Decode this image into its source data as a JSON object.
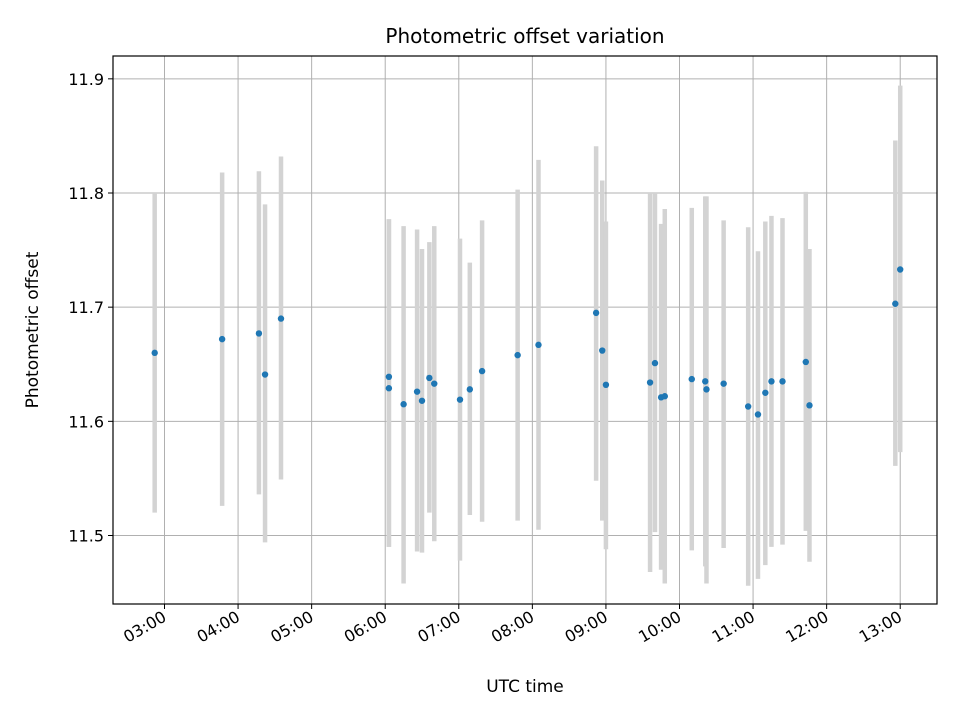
{
  "chart_data": {
    "type": "scatter",
    "title": "Photometric offset variation",
    "xlabel": "UTC time",
    "ylabel": "Photometric offset",
    "xlim": [
      "02:18",
      "13:30"
    ],
    "ylim": [
      11.44,
      11.92
    ],
    "x_ticks": [
      "03:00",
      "04:00",
      "05:00",
      "06:00",
      "07:00",
      "08:00",
      "09:00",
      "10:00",
      "11:00",
      "12:00",
      "13:00"
    ],
    "y_ticks": [
      "11.5",
      "11.6",
      "11.7",
      "11.8",
      "11.9"
    ],
    "grid": true,
    "marker_color": "#1f77b4",
    "errorbar_color": "#d3d3d3",
    "points": [
      {
        "x": "02:52",
        "y": 11.66,
        "lo": 11.52,
        "hi": 11.8
      },
      {
        "x": "03:47",
        "y": 11.672,
        "lo": 11.526,
        "hi": 11.818
      },
      {
        "x": "04:17",
        "y": 11.677,
        "lo": 11.536,
        "hi": 11.819
      },
      {
        "x": "04:22",
        "y": 11.641,
        "lo": 11.494,
        "hi": 11.79
      },
      {
        "x": "04:35",
        "y": 11.69,
        "lo": 11.549,
        "hi": 11.832
      },
      {
        "x": "06:03",
        "y": 11.639,
        "lo": 11.49,
        "hi": 11.777
      },
      {
        "x": "06:03",
        "y": 11.629,
        "lo": 11.49,
        "hi": 11.777
      },
      {
        "x": "06:15",
        "y": 11.615,
        "lo": 11.458,
        "hi": 11.771
      },
      {
        "x": "06:26",
        "y": 11.626,
        "lo": 11.486,
        "hi": 11.768
      },
      {
        "x": "06:30",
        "y": 11.618,
        "lo": 11.485,
        "hi": 11.751
      },
      {
        "x": "06:36",
        "y": 11.638,
        "lo": 11.52,
        "hi": 11.757
      },
      {
        "x": "06:40",
        "y": 11.633,
        "lo": 11.495,
        "hi": 11.771
      },
      {
        "x": "07:01",
        "y": 11.619,
        "lo": 11.478,
        "hi": 11.76
      },
      {
        "x": "07:09",
        "y": 11.628,
        "lo": 11.518,
        "hi": 11.739
      },
      {
        "x": "07:19",
        "y": 11.644,
        "lo": 11.512,
        "hi": 11.776
      },
      {
        "x": "07:48",
        "y": 11.658,
        "lo": 11.513,
        "hi": 11.803
      },
      {
        "x": "08:05",
        "y": 11.667,
        "lo": 11.505,
        "hi": 11.829
      },
      {
        "x": "08:52",
        "y": 11.695,
        "lo": 11.548,
        "hi": 11.841
      },
      {
        "x": "08:57",
        "y": 11.662,
        "lo": 11.513,
        "hi": 11.811
      },
      {
        "x": "09:00",
        "y": 11.632,
        "lo": 11.488,
        "hi": 11.775
      },
      {
        "x": "09:36",
        "y": 11.634,
        "lo": 11.468,
        "hi": 11.8
      },
      {
        "x": "09:40",
        "y": 11.651,
        "lo": 11.503,
        "hi": 11.8
      },
      {
        "x": "09:45",
        "y": 11.621,
        "lo": 11.47,
        "hi": 11.773
      },
      {
        "x": "09:48",
        "y": 11.622,
        "lo": 11.458,
        "hi": 11.786
      },
      {
        "x": "10:10",
        "y": 11.637,
        "lo": 11.487,
        "hi": 11.787
      },
      {
        "x": "10:21",
        "y": 11.635,
        "lo": 11.473,
        "hi": 11.797
      },
      {
        "x": "10:22",
        "y": 11.628,
        "lo": 11.458,
        "hi": 11.797
      },
      {
        "x": "10:36",
        "y": 11.633,
        "lo": 11.489,
        "hi": 11.776
      },
      {
        "x": "10:56",
        "y": 11.613,
        "lo": 11.456,
        "hi": 11.77
      },
      {
        "x": "11:04",
        "y": 11.606,
        "lo": 11.462,
        "hi": 11.749
      },
      {
        "x": "11:10",
        "y": 11.625,
        "lo": 11.474,
        "hi": 11.775
      },
      {
        "x": "11:15",
        "y": 11.635,
        "lo": 11.49,
        "hi": 11.78
      },
      {
        "x": "11:24",
        "y": 11.635,
        "lo": 11.492,
        "hi": 11.778
      },
      {
        "x": "11:43",
        "y": 11.652,
        "lo": 11.504,
        "hi": 11.801
      },
      {
        "x": "11:46",
        "y": 11.614,
        "lo": 11.477,
        "hi": 11.751
      },
      {
        "x": "12:56",
        "y": 11.703,
        "lo": 11.561,
        "hi": 11.846
      },
      {
        "x": "13:00",
        "y": 11.733,
        "lo": 11.573,
        "hi": 11.894
      }
    ]
  }
}
